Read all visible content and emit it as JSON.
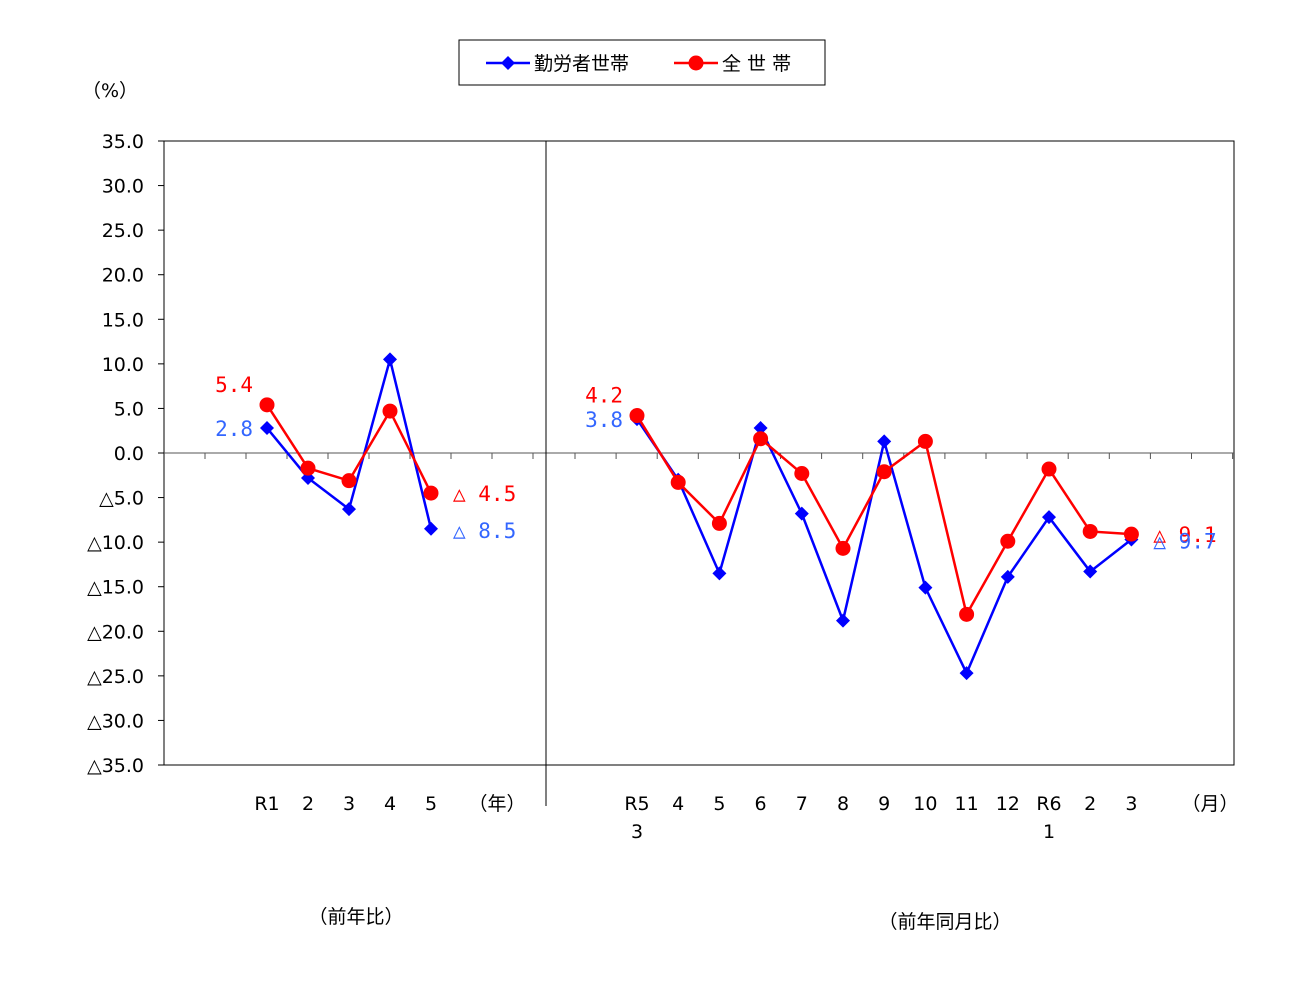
{
  "chart_data": {
    "type": "line",
    "y_unit": "（%）",
    "ylim": [
      -35,
      35
    ],
    "y_ticks": [
      35,
      30,
      25,
      20,
      15,
      10,
      5,
      0,
      -5,
      -10,
      -15,
      -20,
      -25,
      -30,
      -35
    ],
    "y_tick_labels": [
      "35.0",
      "30.0",
      "25.0",
      "20.0",
      "15.0",
      "10.0",
      "5.0",
      "0.0",
      "△5.0",
      "△10.0",
      "△15.0",
      "△20.0",
      "△25.0",
      "△30.0",
      "△35.0"
    ],
    "legend": {
      "placement": "top-center"
    },
    "series_styles": [
      {
        "name": "勤労者世帯",
        "color": "#0000ff",
        "marker": "diamond"
      },
      {
        "name": "全 世 帯",
        "color": "#ff0000",
        "marker": "circle"
      }
    ],
    "panels": [
      {
        "caption": "（前年比）",
        "x_unit": "（年）",
        "categories": [
          [
            "R1"
          ],
          [
            "2"
          ],
          [
            "3"
          ],
          [
            "4"
          ],
          [
            "5"
          ]
        ],
        "series": [
          {
            "name": "勤労者世帯",
            "values": [
              2.8,
              -2.8,
              -6.3,
              10.5,
              -8.5
            ]
          },
          {
            "name": "全 世 帯",
            "values": [
              5.4,
              -1.7,
              -3.1,
              4.7,
              -4.5
            ]
          }
        ],
        "data_labels": [
          {
            "series": "全 世 帯",
            "index": 0,
            "text": "5.4"
          },
          {
            "series": "勤労者世帯",
            "index": 0,
            "text": "2.8"
          },
          {
            "series": "全 世 帯",
            "index": 4,
            "text": "△ 4.5"
          },
          {
            "series": "勤労者世帯",
            "index": 4,
            "text": "△ 8.5"
          }
        ]
      },
      {
        "caption": "（前年同月比）",
        "x_unit": "（月）",
        "categories": [
          [
            "R5",
            "3"
          ],
          [
            "4"
          ],
          [
            "5"
          ],
          [
            "6"
          ],
          [
            "7"
          ],
          [
            "8"
          ],
          [
            "9"
          ],
          [
            "10"
          ],
          [
            "11"
          ],
          [
            "12"
          ],
          [
            "R6",
            "1"
          ],
          [
            "2"
          ],
          [
            "3"
          ]
        ],
        "series": [
          {
            "name": "勤労者世帯",
            "values": [
              3.8,
              -3.0,
              -13.5,
              2.8,
              -6.8,
              -18.8,
              1.3,
              -15.1,
              -24.7,
              -13.9,
              -7.2,
              -13.3,
              -9.7
            ]
          },
          {
            "name": "全 世 帯",
            "values": [
              4.2,
              -3.3,
              -7.9,
              1.6,
              -2.3,
              -10.7,
              -2.1,
              1.3,
              -18.1,
              -9.9,
              -1.8,
              -8.8,
              -9.1
            ]
          }
        ],
        "data_labels": [
          {
            "series": "全 世 帯",
            "index": 0,
            "text": "4.2"
          },
          {
            "series": "勤労者世帯",
            "index": 0,
            "text": "3.8"
          },
          {
            "series": "全 世 帯",
            "index": 12,
            "text": "△ 9.1"
          },
          {
            "series": "勤労者世帯",
            "index": 12,
            "text": "△ 9.7"
          }
        ]
      }
    ]
  }
}
